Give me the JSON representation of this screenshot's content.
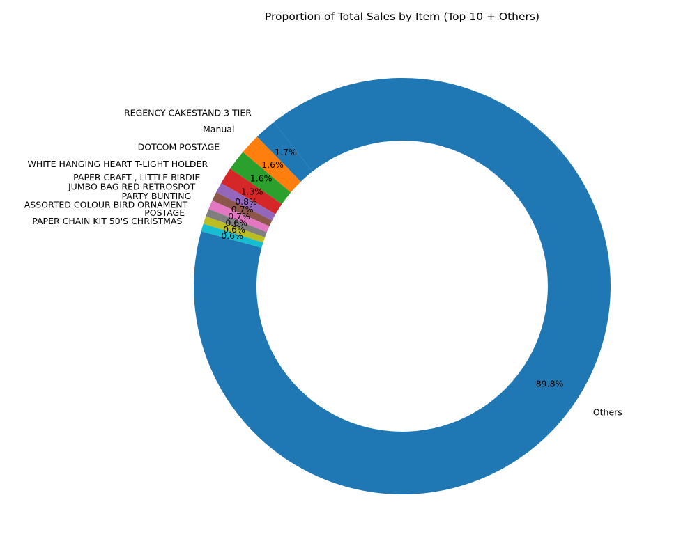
{
  "chart_data": {
    "type": "pie",
    "title": "Proportion of Total Sales by Item (Top 10 + Others)",
    "donut": true,
    "start_angle_deg": 128,
    "direction": "counterclockwise",
    "slices": [
      {
        "label": "REGENCY CAKESTAND 3 TIER",
        "value": 1.7,
        "pct_label": "1.7%",
        "color": "#1f77b4"
      },
      {
        "label": "Manual",
        "value": 1.6,
        "pct_label": "1.6%",
        "color": "#ff7f0e"
      },
      {
        "label": "DOTCOM POSTAGE",
        "value": 1.6,
        "pct_label": "1.6%",
        "color": "#2ca02c"
      },
      {
        "label": "WHITE HANGING HEART T-LIGHT HOLDER",
        "value": 1.3,
        "pct_label": "1.3%",
        "color": "#d62728"
      },
      {
        "label": "PAPER CRAFT , LITTLE BIRDIE",
        "value": 0.8,
        "pct_label": "0.8%",
        "color": "#9467bd"
      },
      {
        "label": "JUMBO BAG RED RETROSPOT",
        "value": 0.7,
        "pct_label": "0.7%",
        "color": "#8c564b"
      },
      {
        "label": "PARTY BUNTING",
        "value": 0.7,
        "pct_label": "0.7%",
        "color": "#e377c2"
      },
      {
        "label": "ASSORTED COLOUR BIRD ORNAMENT",
        "value": 0.6,
        "pct_label": "0.6%",
        "color": "#7f7f7f"
      },
      {
        "label": "POSTAGE",
        "value": 0.6,
        "pct_label": "0.6%",
        "color": "#bcbd22"
      },
      {
        "label": "PAPER CHAIN KIT 50'S CHRISTMAS",
        "value": 0.6,
        "pct_label": "0.6%",
        "color": "#17becf"
      },
      {
        "label": "Others",
        "value": 89.8,
        "pct_label": "89.8%",
        "color": "#1f77b4"
      }
    ]
  }
}
